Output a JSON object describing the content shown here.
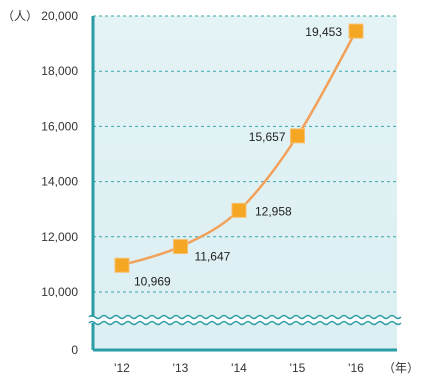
{
  "chart_data": {
    "type": "line",
    "title": "",
    "xlabel": "",
    "ylabel": "",
    "y_unit": "（人）",
    "x_unit": "（年）",
    "categories": [
      "'12",
      "'13",
      "'14",
      "'15",
      "'16"
    ],
    "series": [
      {
        "values": [
          10969,
          11647,
          12958,
          15657,
          19453
        ]
      }
    ],
    "data_labels": [
      "10,969",
      "11,647",
      "12,958",
      "15,657",
      "19,453"
    ],
    "y_ticks": [
      {
        "value": 0,
        "label": "0"
      },
      {
        "value": 10000,
        "label": "10,000"
      },
      {
        "value": 12000,
        "label": "12,000"
      },
      {
        "value": 14000,
        "label": "14,000"
      },
      {
        "value": 16000,
        "label": "16,000"
      },
      {
        "value": 18000,
        "label": "18,000"
      },
      {
        "value": 20000,
        "label": "20,000"
      }
    ],
    "ylim": [
      10000,
      20000
    ],
    "axis_break": "between 0 and 10,000",
    "grid": true,
    "colors": {
      "line": "#f2a15a",
      "marker": "#f5a623",
      "plot_background": "#e6f4f5",
      "grid": "#3aa7ad",
      "axis": "#2a9ca6",
      "break_band": "#ffffff"
    }
  }
}
